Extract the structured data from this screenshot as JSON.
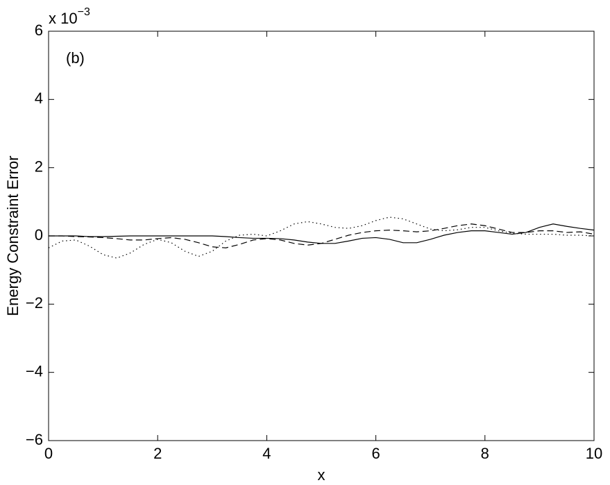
{
  "chart_data": {
    "type": "line",
    "ylabel": "Energy Constraint Error",
    "xlabel": "x",
    "annotation": "(b)",
    "y_multiplier": {
      "base": "x 10",
      "exponent": "−3"
    },
    "xlim": [
      0,
      10
    ],
    "xticks": [
      0,
      2,
      4,
      6,
      8,
      10
    ],
    "ylim": [
      -6,
      6
    ],
    "yticks": [
      {
        "value": -6,
        "label": "−6"
      },
      {
        "value": -4,
        "label": "−4"
      },
      {
        "value": -2,
        "label": "−2"
      },
      0,
      2,
      4,
      6
    ],
    "grid": false,
    "x": [
      0,
      0.25,
      0.5,
      0.75,
      1,
      1.25,
      1.5,
      1.75,
      2,
      2.25,
      2.5,
      2.75,
      3,
      3.25,
      3.5,
      3.75,
      4,
      4.25,
      4.5,
      4.75,
      5,
      5.25,
      5.5,
      5.75,
      6,
      6.25,
      6.5,
      6.75,
      7,
      7.25,
      7.5,
      7.75,
      8,
      8.25,
      8.5,
      8.75,
      9,
      9.25,
      9.5,
      9.75,
      10
    ],
    "series": [
      {
        "color": "#000000",
        "style": "solid",
        "values": [
          0,
          0,
          0,
          -0.02,
          -0.02,
          -0.01,
          0,
          0,
          0,
          0,
          0,
          0,
          0,
          -0.02,
          -0.05,
          -0.07,
          -0.07,
          -0.08,
          -0.12,
          -0.18,
          -0.22,
          -0.22,
          -0.15,
          -0.07,
          -0.05,
          -0.1,
          -0.2,
          -0.2,
          -0.1,
          0.02,
          0.1,
          0.15,
          0.15,
          0.1,
          0.05,
          0.1,
          0.25,
          0.35,
          0.28,
          0.22,
          0.17
        ]
      },
      {
        "color": "#000000",
        "style": "dashed",
        "values": [
          0,
          0,
          -0.02,
          -0.03,
          -0.05,
          -0.08,
          -0.12,
          -0.12,
          -0.08,
          -0.05,
          -0.1,
          -0.2,
          -0.32,
          -0.35,
          -0.25,
          -0.12,
          -0.08,
          -0.12,
          -0.22,
          -0.27,
          -0.22,
          -0.1,
          0.02,
          0.1,
          0.15,
          0.17,
          0.15,
          0.12,
          0.15,
          0.22,
          0.3,
          0.35,
          0.3,
          0.2,
          0.1,
          0.1,
          0.15,
          0.15,
          0.1,
          0.12,
          0.05
        ]
      },
      {
        "color": "#000000",
        "style": "dotted",
        "values": [
          -0.35,
          -0.15,
          -0.12,
          -0.3,
          -0.55,
          -0.65,
          -0.5,
          -0.25,
          -0.1,
          -0.2,
          -0.45,
          -0.6,
          -0.45,
          -0.15,
          0.02,
          0.05,
          0,
          0.15,
          0.35,
          0.42,
          0.35,
          0.25,
          0.22,
          0.3,
          0.45,
          0.55,
          0.5,
          0.35,
          0.2,
          0.15,
          0.18,
          0.25,
          0.25,
          0.15,
          0.08,
          0.05,
          0.05,
          0.05,
          0.02,
          0.02,
          0
        ]
      }
    ]
  }
}
